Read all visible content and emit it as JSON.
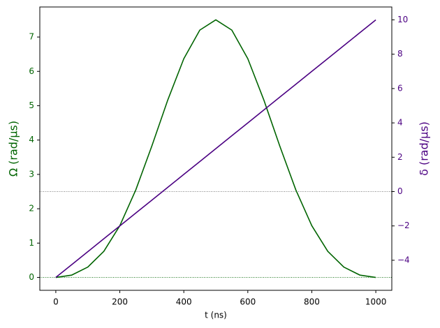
{
  "chart_data": {
    "type": "line",
    "xlabel": "t (ns)",
    "ylabel": "Ω (rad/µs)",
    "y2label": "δ (rad/µs)",
    "x": [
      0,
      50,
      100,
      150,
      200,
      250,
      300,
      350,
      400,
      450,
      500,
      550,
      600,
      650,
      700,
      750,
      800,
      850,
      900,
      950,
      1000
    ],
    "series": [
      {
        "name": "Ω",
        "color": "#006400",
        "axis": "y",
        "values": [
          0,
          0.069,
          0.302,
          0.76,
          1.506,
          2.55,
          3.823,
          5.169,
          6.369,
          7.202,
          7.5,
          7.202,
          6.369,
          5.169,
          3.823,
          2.55,
          1.506,
          0.76,
          0.302,
          0.069,
          0
        ]
      },
      {
        "name": "δ",
        "color": "#4b0082",
        "axis": "y2",
        "values": [
          -5,
          -4.25,
          -3.5,
          -2.75,
          -2,
          -1.25,
          -0.5,
          0.25,
          1,
          1.75,
          2.5,
          3.25,
          4,
          4.75,
          5.5,
          6.25,
          7,
          7.75,
          8.5,
          9.25,
          10
        ]
      }
    ],
    "xlim": [
      -50,
      1050
    ],
    "xticks": [
      0,
      200,
      400,
      600,
      800,
      1000
    ],
    "ylim": [
      -0.375,
      7.875
    ],
    "yticks": [
      0,
      1,
      2,
      3,
      4,
      5,
      6,
      7
    ],
    "y2lim": [
      -5.75,
      10.75
    ],
    "y2ticks": [
      {
        "value": -4,
        "label": "−4"
      },
      {
        "value": -2,
        "label": "−2"
      },
      0,
      2,
      4,
      6,
      8,
      10
    ],
    "hlines": [
      {
        "value": 0,
        "axis": "y",
        "color": "#006400"
      },
      {
        "value": 0,
        "axis": "y2",
        "color": "#555555"
      }
    ]
  }
}
